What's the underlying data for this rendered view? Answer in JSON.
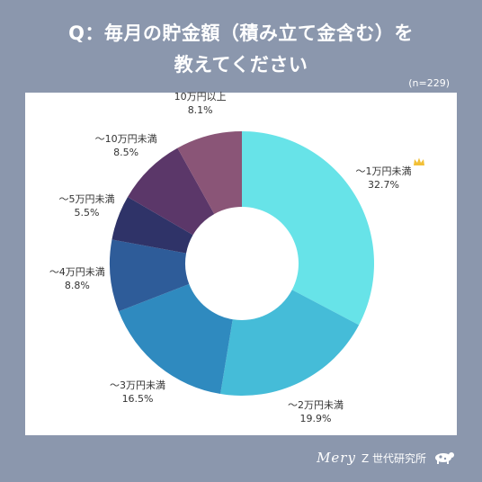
{
  "header": {
    "title_line1": "Q：毎月の貯金額（積み立て金含む）を",
    "title_line2": "教えてください",
    "sample_size": "(n=229)"
  },
  "footer": {
    "brand_script": "Mery",
    "brand_text": "Z 世代研究所",
    "logo_icon": "cow-icon"
  },
  "colors": {
    "background": "#8b97ad",
    "panel": "#ffffff",
    "crown": "#f2c037"
  },
  "chart_data": {
    "type": "pie",
    "donut": true,
    "start_angle_deg": 0,
    "direction": "clockwise",
    "legend": "none",
    "categories": [
      "～1万円未満",
      "～2万円未満",
      "～3万円未満",
      "～4万円未満",
      "～5万円未満",
      "～10万円未満",
      "10万円以上"
    ],
    "values": [
      32.7,
      19.9,
      16.5,
      8.8,
      5.5,
      8.5,
      8.1
    ],
    "value_labels": [
      "32.7%",
      "19.9%",
      "16.5%",
      "8.8%",
      "5.5%",
      "8.5%",
      "8.1%"
    ],
    "colors": [
      "#67e3e8",
      "#45bcd8",
      "#2f8abf",
      "#2e5c99",
      "#2f3368",
      "#5b3769",
      "#8a5577"
    ],
    "highlight": {
      "category": "～1万円未満",
      "icon": "crown-icon"
    }
  }
}
